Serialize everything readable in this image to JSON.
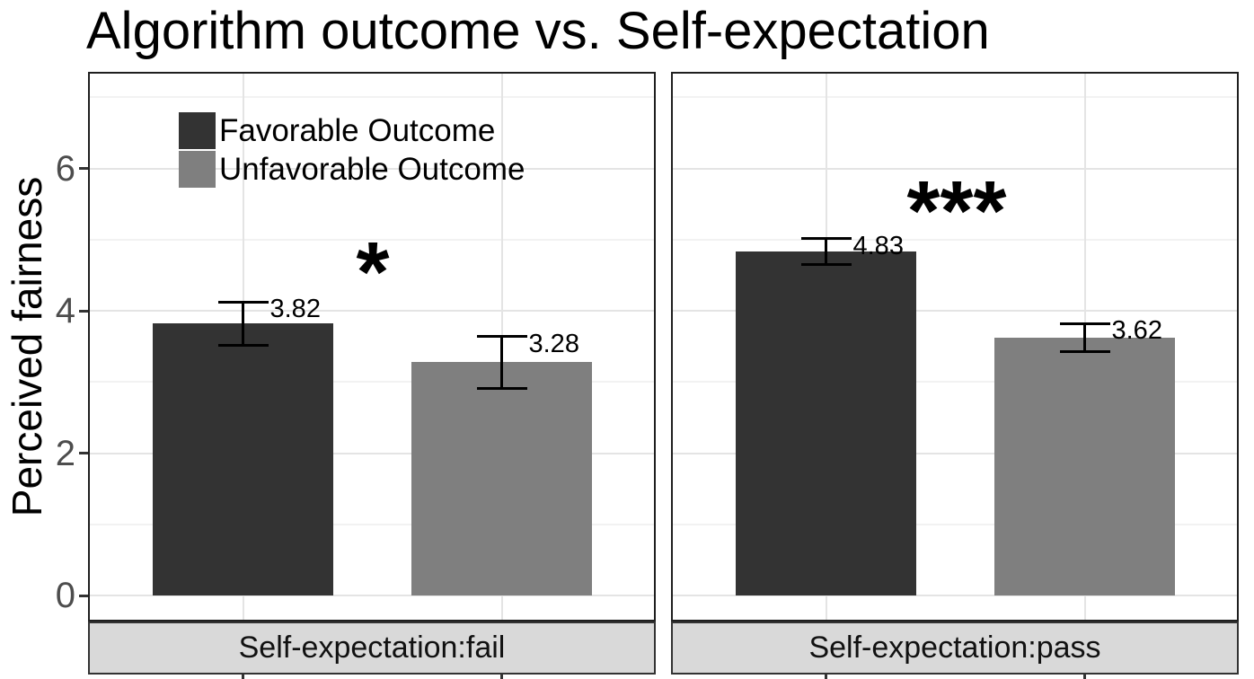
{
  "title": "Algorithm outcome vs. Self-expectation",
  "y_axis": {
    "label": "Perceived fairness"
  },
  "chart_data": {
    "type": "bar",
    "title": "Algorithm outcome vs. Self-expectation",
    "ylabel": "Perceived fairness",
    "xlabel": "",
    "ylim": [
      0,
      7.35
    ],
    "yticks": [
      0,
      2,
      4,
      6
    ],
    "yticks_minor": [
      1,
      3,
      5,
      7
    ],
    "grid": "on",
    "legend_position": "top-left-inside",
    "series": [
      {
        "name": "Favorable Outcome",
        "color": "#333333"
      },
      {
        "name": "Unfavorable Outcome",
        "color": "#7f7f7f"
      }
    ],
    "facets": [
      {
        "label": "Self-expectation:fail",
        "significance": "*",
        "bars": [
          {
            "series": "Favorable Outcome",
            "value": 3.82,
            "label": "3.82",
            "error_low": 3.52,
            "error_high": 4.12
          },
          {
            "series": "Unfavorable Outcome",
            "value": 3.28,
            "label": "3.28",
            "error_low": 2.91,
            "error_high": 3.64
          }
        ]
      },
      {
        "label": "Self-expectation:pass",
        "significance": "***",
        "bars": [
          {
            "series": "Favorable Outcome",
            "value": 4.83,
            "label": "4.83",
            "error_low": 4.65,
            "error_high": 5.01
          },
          {
            "series": "Unfavorable Outcome",
            "value": 3.62,
            "label": "3.62",
            "error_low": 3.42,
            "error_high": 3.82
          }
        ]
      }
    ]
  }
}
